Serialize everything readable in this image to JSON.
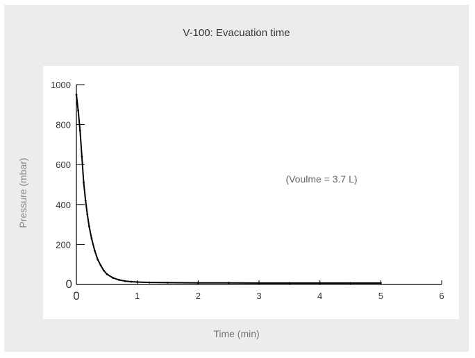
{
  "chart_data": {
    "type": "line",
    "title": "V-100: Evacuation time",
    "xlabel": "Time (min)",
    "ylabel": "Pressure (mbar)",
    "annotation": "(Voulme = 3.7 L)",
    "xlim": [
      0,
      6
    ],
    "ylim": [
      0,
      1000
    ],
    "x_ticks": [
      0,
      1,
      2,
      3,
      4,
      5,
      6
    ],
    "y_ticks": [
      0,
      200,
      400,
      600,
      800,
      1000
    ],
    "grid": false,
    "series": [
      {
        "color": "#000000",
        "x": [
          0,
          0.03,
          0.06,
          0.09,
          0.12,
          0.15,
          0.18,
          0.21,
          0.25,
          0.3,
          0.35,
          0.4,
          0.45,
          0.5,
          0.6,
          0.7,
          0.8,
          0.9,
          1.0,
          1.2,
          1.5,
          2.0,
          2.5,
          3.0,
          3.5,
          4.0,
          4.5,
          5.0
        ],
        "y": [
          950,
          870,
          770,
          640,
          510,
          420,
          350,
          290,
          230,
          170,
          125,
          95,
          70,
          52,
          33,
          23,
          17,
          14,
          12,
          10,
          9,
          8,
          8,
          7,
          7,
          7,
          7,
          7
        ]
      }
    ]
  }
}
